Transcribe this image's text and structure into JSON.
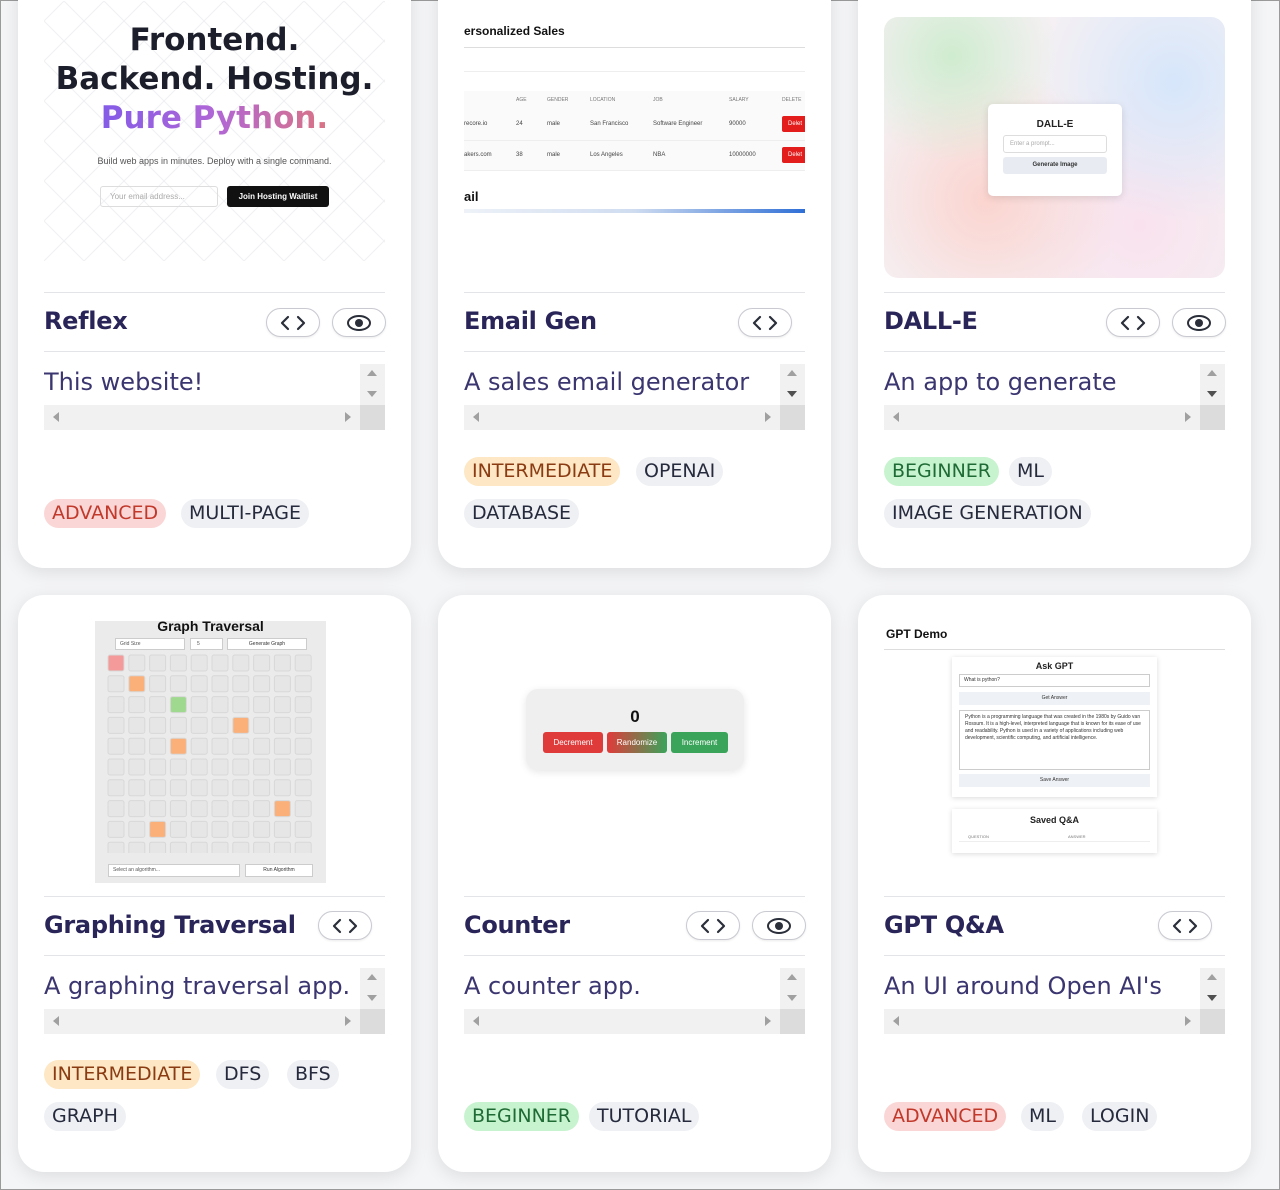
{
  "cards": [
    {
      "title": "Reflex",
      "description": "This website!",
      "tags": [
        "ADVANCED",
        "MULTI-PAGE"
      ],
      "has_code": true,
      "has_preview": true,
      "preview": {
        "line1": "Frontend.",
        "line2": "Backend. Hosting.",
        "line3": "Pure Python.",
        "sub": "Build web apps in minutes. Deploy with a single command.",
        "email_placeholder": "Your email address...",
        "cta": "Join Hosting Waitlist"
      }
    },
    {
      "title": "Email Gen",
      "description": "A sales email generator",
      "tags": [
        "INTERMEDIATE",
        "OPENAI",
        "DATABASE"
      ],
      "has_code": true,
      "has_preview": false,
      "preview": {
        "heading": "ersonalized Sales",
        "columns": [
          "AGE",
          "GENDER",
          "LOCATION",
          "JOB",
          "SALARY",
          "DELETE"
        ],
        "rows": [
          [
            "recore.io",
            "24",
            "male",
            "San Francisco",
            "Software Engineer",
            "90000",
            "Delet"
          ],
          [
            "akers.com",
            "38",
            "male",
            "Los Angeles",
            "NBA",
            "10000000",
            "Delet"
          ]
        ],
        "section": "ail"
      }
    },
    {
      "title": "DALL-E",
      "description": "An app to generate",
      "tags": [
        "BEGINNER",
        "ML",
        "IMAGE GENERATION"
      ],
      "has_code": true,
      "has_preview": true,
      "preview": {
        "heading": "DALL-E",
        "placeholder": "Enter a prompt...",
        "button": "Generate Image"
      }
    },
    {
      "title": "Graphing Traversal",
      "description": "A graphing traversal app.",
      "tags": [
        "INTERMEDIATE",
        "DFS",
        "BFS",
        "GRAPH"
      ],
      "has_code": true,
      "has_preview": false,
      "preview": {
        "heading": "Graph Traversal",
        "grid_size_label": "Grid Size",
        "grid_value": "5",
        "generate": "Generate Graph",
        "algo_placeholder": "Select an algorithm...",
        "run": "Run Algorithm"
      }
    },
    {
      "title": "Counter",
      "description": "A counter app.",
      "tags": [
        "BEGINNER",
        "TUTORIAL"
      ],
      "has_code": true,
      "has_preview": true,
      "preview": {
        "count": "0",
        "decrement": "Decrement",
        "randomize": "Randomize",
        "increment": "Increment"
      }
    },
    {
      "title": "GPT Q&A",
      "description": "An UI around Open AI's",
      "tags": [
        "ADVANCED",
        "ML",
        "LOGIN"
      ],
      "has_code": true,
      "has_preview": false,
      "preview": {
        "heading": "GPT Demo",
        "ask": "Ask GPT",
        "question": "What is python?",
        "get_answer": "Get Answer",
        "answer": "Python is a programming language that was created in the 1980s by Guido van Rossum. It is a high-level, interpreted language that is known for its ease of use and readability. Python is used in a variety of applications including web development, scientific computing, and artificial intelligence.",
        "save": "Save Answer",
        "saved": "Saved Q&A",
        "col_q": "QUESTION",
        "col_a": "ANSWER"
      }
    }
  ]
}
